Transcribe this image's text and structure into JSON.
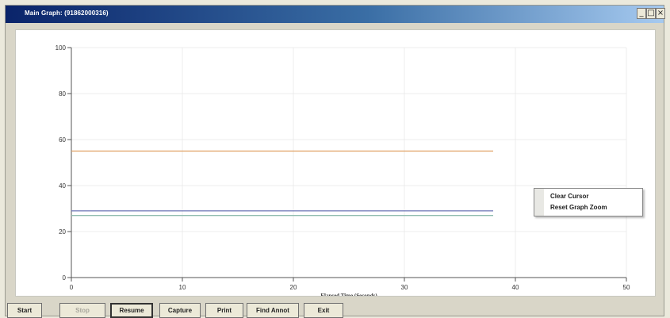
{
  "window": {
    "title": "Main Graph: (91862000316)",
    "controls": {
      "minimize": "_",
      "maximize": "□",
      "close": "×"
    }
  },
  "chart_data": {
    "type": "line",
    "xlabel": "Elapsed Time (Seconds)",
    "ylabel": "",
    "xlim": [
      0,
      50
    ],
    "ylim": [
      0,
      100
    ],
    "x_ticks": [
      0,
      10,
      20,
      30,
      40,
      50
    ],
    "y_ticks": [
      0,
      20,
      40,
      60,
      80,
      100
    ],
    "grid": true,
    "series": [
      {
        "x": [
          0,
          38
        ],
        "values": [
          55,
          55
        ],
        "color": "#e0a060"
      },
      {
        "x": [
          0,
          38
        ],
        "values": [
          29,
          29
        ],
        "color": "#6b74b5"
      },
      {
        "x": [
          0,
          38
        ],
        "values": [
          27,
          27
        ],
        "color": "#8fbcae"
      }
    ]
  },
  "context_menu": {
    "items": [
      "Clear Cursor",
      "Reset Graph Zoom"
    ]
  },
  "buttons": [
    {
      "label": "Start",
      "state": "normal"
    },
    {
      "label": "Stop",
      "state": "disabled"
    },
    {
      "label": "Resume",
      "state": "pressed"
    },
    {
      "label": "Capture",
      "state": "normal"
    },
    {
      "label": "Print",
      "state": "normal"
    },
    {
      "label": "Find Annot",
      "state": "normal"
    },
    {
      "label": "Exit",
      "state": "normal"
    }
  ]
}
